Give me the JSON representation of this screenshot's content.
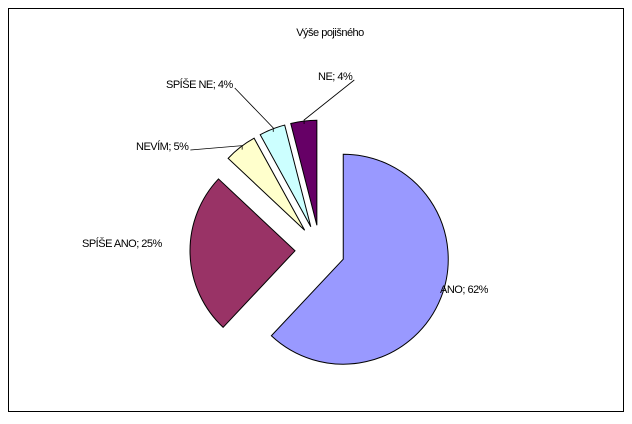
{
  "chart_data": {
    "type": "pie",
    "title": "Výše pojišného",
    "values": [
      62,
      25,
      5,
      4,
      4
    ],
    "value_labels": [
      "ANO; 62%",
      "SPÍŠE ANO; 25%",
      "NEVÍM; 5%",
      "SPÍŠE NE; 4%",
      "NE; 4%"
    ],
    "colors": [
      "#9999ff",
      "#993366",
      "#ffffcc",
      "#ccffff",
      "#660066"
    ],
    "exploded": true
  }
}
